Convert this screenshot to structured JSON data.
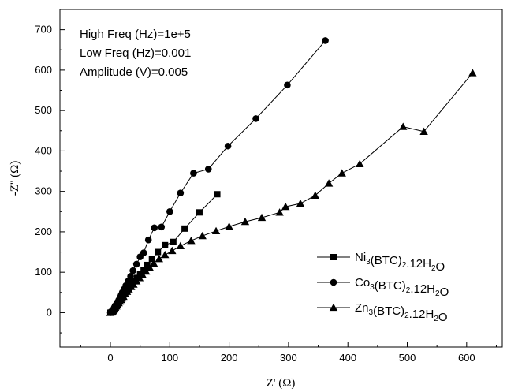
{
  "chart_data": {
    "type": "line",
    "xlabel": "Z' (Ω)",
    "ylabel": "-Z'' (Ω)",
    "xlim": [
      -85,
      660
    ],
    "ylim": [
      -85,
      750
    ],
    "x_ticks": [
      0,
      100,
      200,
      300,
      400,
      500,
      600
    ],
    "y_ticks": [
      0,
      100,
      200,
      300,
      400,
      500,
      600,
      700
    ],
    "annotations": [
      "High Freq (Hz)=1e+5",
      "Low Freq (Hz)=0.001",
      "Amplitude (V)=0.005"
    ],
    "legend_position": "bottom-right",
    "series": [
      {
        "name": "Ni3(BTC)2.12H2O",
        "name_parts": {
          "a": "Ni",
          "s1": "3",
          "b": "(BTC)",
          "s2": "2",
          "c": ".12H",
          "s3": "2",
          "d": "O"
        },
        "marker": "square",
        "points": [
          [
            0,
            0
          ],
          [
            2,
            1
          ],
          [
            3,
            2
          ],
          [
            4,
            3
          ],
          [
            5,
            4
          ],
          [
            6,
            6
          ],
          [
            7,
            8
          ],
          [
            8,
            10
          ],
          [
            9,
            13
          ],
          [
            10,
            16
          ],
          [
            12,
            20
          ],
          [
            14,
            25
          ],
          [
            16,
            30
          ],
          [
            18,
            35
          ],
          [
            20,
            40
          ],
          [
            22,
            45
          ],
          [
            25,
            51
          ],
          [
            28,
            57
          ],
          [
            32,
            63
          ],
          [
            36,
            70
          ],
          [
            40,
            78
          ],
          [
            45,
            86
          ],
          [
            50,
            95
          ],
          [
            56,
            106
          ],
          [
            62,
            118
          ],
          [
            70,
            133
          ],
          [
            80,
            150
          ],
          [
            92,
            167
          ],
          [
            106,
            175
          ],
          [
            125,
            208
          ],
          [
            150,
            248
          ],
          [
            180,
            293
          ]
        ]
      },
      {
        "name": "Co3(BTC)2.12H2O",
        "name_parts": {
          "a": "Co",
          "s1": "3",
          "b": "(BTC)",
          "s2": "2",
          "c": ".12H",
          "s3": "2",
          "d": "O"
        },
        "marker": "circle",
        "points": [
          [
            0,
            0
          ],
          [
            2,
            2
          ],
          [
            3,
            4
          ],
          [
            4,
            6
          ],
          [
            5,
            8
          ],
          [
            6,
            11
          ],
          [
            7,
            14
          ],
          [
            8,
            17
          ],
          [
            10,
            21
          ],
          [
            12,
            26
          ],
          [
            14,
            31
          ],
          [
            16,
            37
          ],
          [
            18,
            43
          ],
          [
            20,
            50
          ],
          [
            23,
            58
          ],
          [
            26,
            67
          ],
          [
            30,
            78
          ],
          [
            34,
            90
          ],
          [
            38,
            104
          ],
          [
            44,
            120
          ],
          [
            50,
            138
          ],
          [
            56,
            148
          ],
          [
            64,
            180
          ],
          [
            74,
            210
          ],
          [
            86,
            212
          ],
          [
            100,
            250
          ],
          [
            118,
            296
          ],
          [
            140,
            345
          ],
          [
            165,
            355
          ],
          [
            198,
            412
          ],
          [
            245,
            480
          ],
          [
            298,
            563
          ],
          [
            362,
            673
          ]
        ]
      },
      {
        "name": "Zn3(BTC)2.12H2O",
        "name_parts": {
          "a": "Zn",
          "s1": "3",
          "b": "(BTC)",
          "s2": "2",
          "c": ".12H",
          "s3": "2",
          "d": "O"
        },
        "marker": "triangle",
        "points": [
          [
            0,
            0
          ],
          [
            2,
            1
          ],
          [
            3,
            2
          ],
          [
            4,
            4
          ],
          [
            5,
            6
          ],
          [
            6,
            8
          ],
          [
            7,
            10
          ],
          [
            8,
            13
          ],
          [
            10,
            16
          ],
          [
            12,
            20
          ],
          [
            14,
            24
          ],
          [
            16,
            28
          ],
          [
            18,
            32
          ],
          [
            20,
            36
          ],
          [
            22,
            40
          ],
          [
            25,
            46
          ],
          [
            28,
            52
          ],
          [
            31,
            58
          ],
          [
            35,
            64
          ],
          [
            39,
            70
          ],
          [
            44,
            78
          ],
          [
            49,
            86
          ],
          [
            54,
            94
          ],
          [
            60,
            102
          ],
          [
            66,
            112
          ],
          [
            73,
            122
          ],
          [
            82,
            133
          ],
          [
            92,
            143
          ],
          [
            104,
            153
          ],
          [
            118,
            165
          ],
          [
            136,
            178
          ],
          [
            155,
            190
          ],
          [
            178,
            202
          ],
          [
            200,
            213
          ],
          [
            227,
            225
          ],
          [
            255,
            235
          ],
          [
            285,
            248
          ],
          [
            295,
            262
          ],
          [
            320,
            270
          ],
          [
            345,
            290
          ],
          [
            368,
            320
          ],
          [
            390,
            345
          ],
          [
            420,
            368
          ],
          [
            493,
            460
          ],
          [
            528,
            448
          ],
          [
            610,
            593
          ]
        ]
      }
    ]
  }
}
